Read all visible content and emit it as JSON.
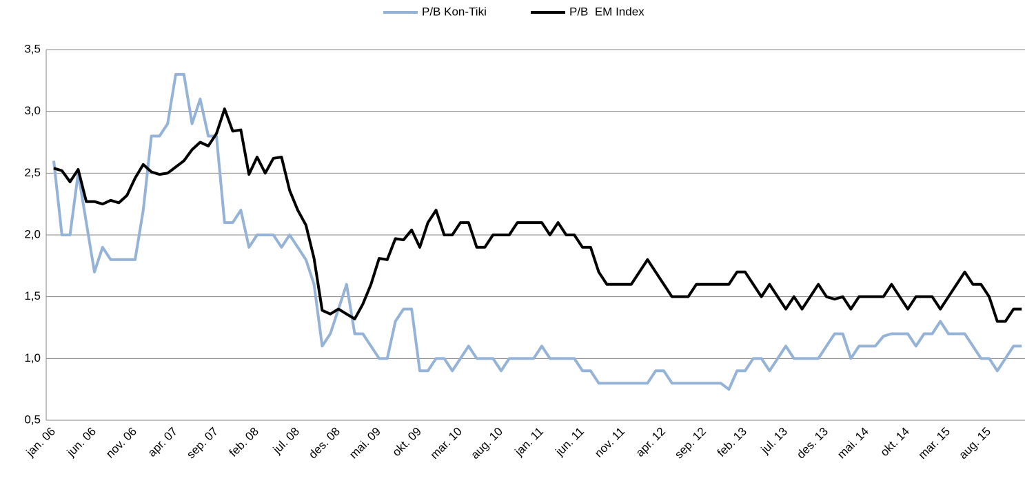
{
  "chart_data": {
    "type": "line",
    "categories": [
      "jan. 06",
      null,
      null,
      null,
      null,
      "jun. 06",
      null,
      null,
      null,
      null,
      "nov. 06",
      null,
      null,
      null,
      null,
      "apr. 07",
      null,
      null,
      null,
      null,
      "sep. 07",
      null,
      null,
      null,
      null,
      "feb. 08",
      null,
      null,
      null,
      null,
      "jul. 08",
      null,
      null,
      null,
      null,
      "des. 08",
      null,
      null,
      null,
      null,
      "mai. 09",
      null,
      null,
      null,
      null,
      "okt. 09",
      null,
      null,
      null,
      null,
      "mar. 10",
      null,
      null,
      null,
      null,
      "aug. 10",
      null,
      null,
      null,
      null,
      "jan. 11",
      null,
      null,
      null,
      null,
      "jun. 11",
      null,
      null,
      null,
      null,
      "nov. 11",
      null,
      null,
      null,
      null,
      "apr. 12",
      null,
      null,
      null,
      null,
      "sep. 12",
      null,
      null,
      null,
      null,
      "feb. 13",
      null,
      null,
      null,
      null,
      "jul. 13",
      null,
      null,
      null,
      null,
      "des. 13",
      null,
      null,
      null,
      null,
      "mai. 14",
      null,
      null,
      null,
      null,
      "okt. 14",
      null,
      null,
      null,
      null,
      "mar. 15",
      null,
      null,
      null,
      null,
      "aug. 15",
      null,
      null,
      null,
      null
    ],
    "series": [
      {
        "name": "P/B Kon-Tiki",
        "color": "#95b3d7",
        "values": [
          2.6,
          2.0,
          2.0,
          2.5,
          2.1,
          1.7,
          1.9,
          1.8,
          1.8,
          1.8,
          1.8,
          2.2,
          2.8,
          2.8,
          2.9,
          3.3,
          3.3,
          2.9,
          3.1,
          2.8,
          2.8,
          2.1,
          2.1,
          2.2,
          1.9,
          2.0,
          2.0,
          2.0,
          1.9,
          2.0,
          1.9,
          1.8,
          1.6,
          1.1,
          1.2,
          1.4,
          1.6,
          1.2,
          1.2,
          1.1,
          1.0,
          1.0,
          1.3,
          1.4,
          1.4,
          0.9,
          0.9,
          1.0,
          1.0,
          0.9,
          1.0,
          1.1,
          1.0,
          1.0,
          1.0,
          0.9,
          1.0,
          1.0,
          1.0,
          1.0,
          1.1,
          1.0,
          1.0,
          1.0,
          1.0,
          0.9,
          0.9,
          0.8,
          0.8,
          0.8,
          0.8,
          0.8,
          0.8,
          0.8,
          0.9,
          0.9,
          0.8,
          0.8,
          0.8,
          0.8,
          0.8,
          0.8,
          0.8,
          0.75,
          0.9,
          0.9,
          1.0,
          1.0,
          0.9,
          1.0,
          1.1,
          1.0,
          1.0,
          1.0,
          1.0,
          1.1,
          1.2,
          1.2,
          1.0,
          1.1,
          1.1,
          1.1,
          1.18,
          1.2,
          1.2,
          1.2,
          1.1,
          1.2,
          1.2,
          1.3,
          1.2,
          1.2,
          1.2,
          1.1,
          1.0,
          1.0,
          0.9,
          1.0,
          1.1,
          1.1
        ]
      },
      {
        "name": "P/B  EM Index",
        "color": "#000000",
        "values": [
          2.54,
          2.52,
          2.43,
          2.53,
          2.27,
          2.27,
          2.25,
          2.28,
          2.26,
          2.32,
          2.46,
          2.57,
          2.51,
          2.49,
          2.5,
          2.55,
          2.6,
          2.69,
          2.75,
          2.72,
          2.82,
          3.02,
          2.84,
          2.85,
          2.49,
          2.63,
          2.5,
          2.62,
          2.63,
          2.36,
          2.2,
          2.08,
          1.81,
          1.39,
          1.36,
          1.4,
          1.36,
          1.32,
          1.44,
          1.6,
          1.81,
          1.8,
          1.97,
          1.96,
          2.04,
          1.9,
          2.1,
          2.2,
          2.0,
          2.0,
          2.1,
          2.1,
          1.9,
          1.9,
          2.0,
          2.0,
          2.0,
          2.1,
          2.1,
          2.1,
          2.1,
          2.0,
          2.1,
          2.0,
          2.0,
          1.9,
          1.9,
          1.7,
          1.6,
          1.6,
          1.6,
          1.6,
          1.7,
          1.8,
          1.7,
          1.6,
          1.5,
          1.5,
          1.5,
          1.6,
          1.6,
          1.6,
          1.6,
          1.6,
          1.7,
          1.7,
          1.6,
          1.5,
          1.6,
          1.5,
          1.4,
          1.5,
          1.4,
          1.5,
          1.6,
          1.5,
          1.48,
          1.5,
          1.4,
          1.5,
          1.5,
          1.5,
          1.5,
          1.6,
          1.5,
          1.4,
          1.5,
          1.5,
          1.5,
          1.4,
          1.5,
          1.6,
          1.7,
          1.6,
          1.6,
          1.5,
          1.3,
          1.3,
          1.4,
          1.4
        ]
      }
    ],
    "ylim": [
      0.5,
      3.5
    ],
    "yticks": [
      {
        "value": 0.5,
        "label": "0,5"
      },
      {
        "value": 1.0,
        "label": "1,0"
      },
      {
        "value": 1.5,
        "label": "1,5"
      },
      {
        "value": 2.0,
        "label": "2,0"
      },
      {
        "value": 2.5,
        "label": "2,5"
      },
      {
        "value": 3.0,
        "label": "3,0"
      },
      {
        "value": 3.5,
        "label": "3,5"
      }
    ],
    "grid": true,
    "legend": "top"
  }
}
